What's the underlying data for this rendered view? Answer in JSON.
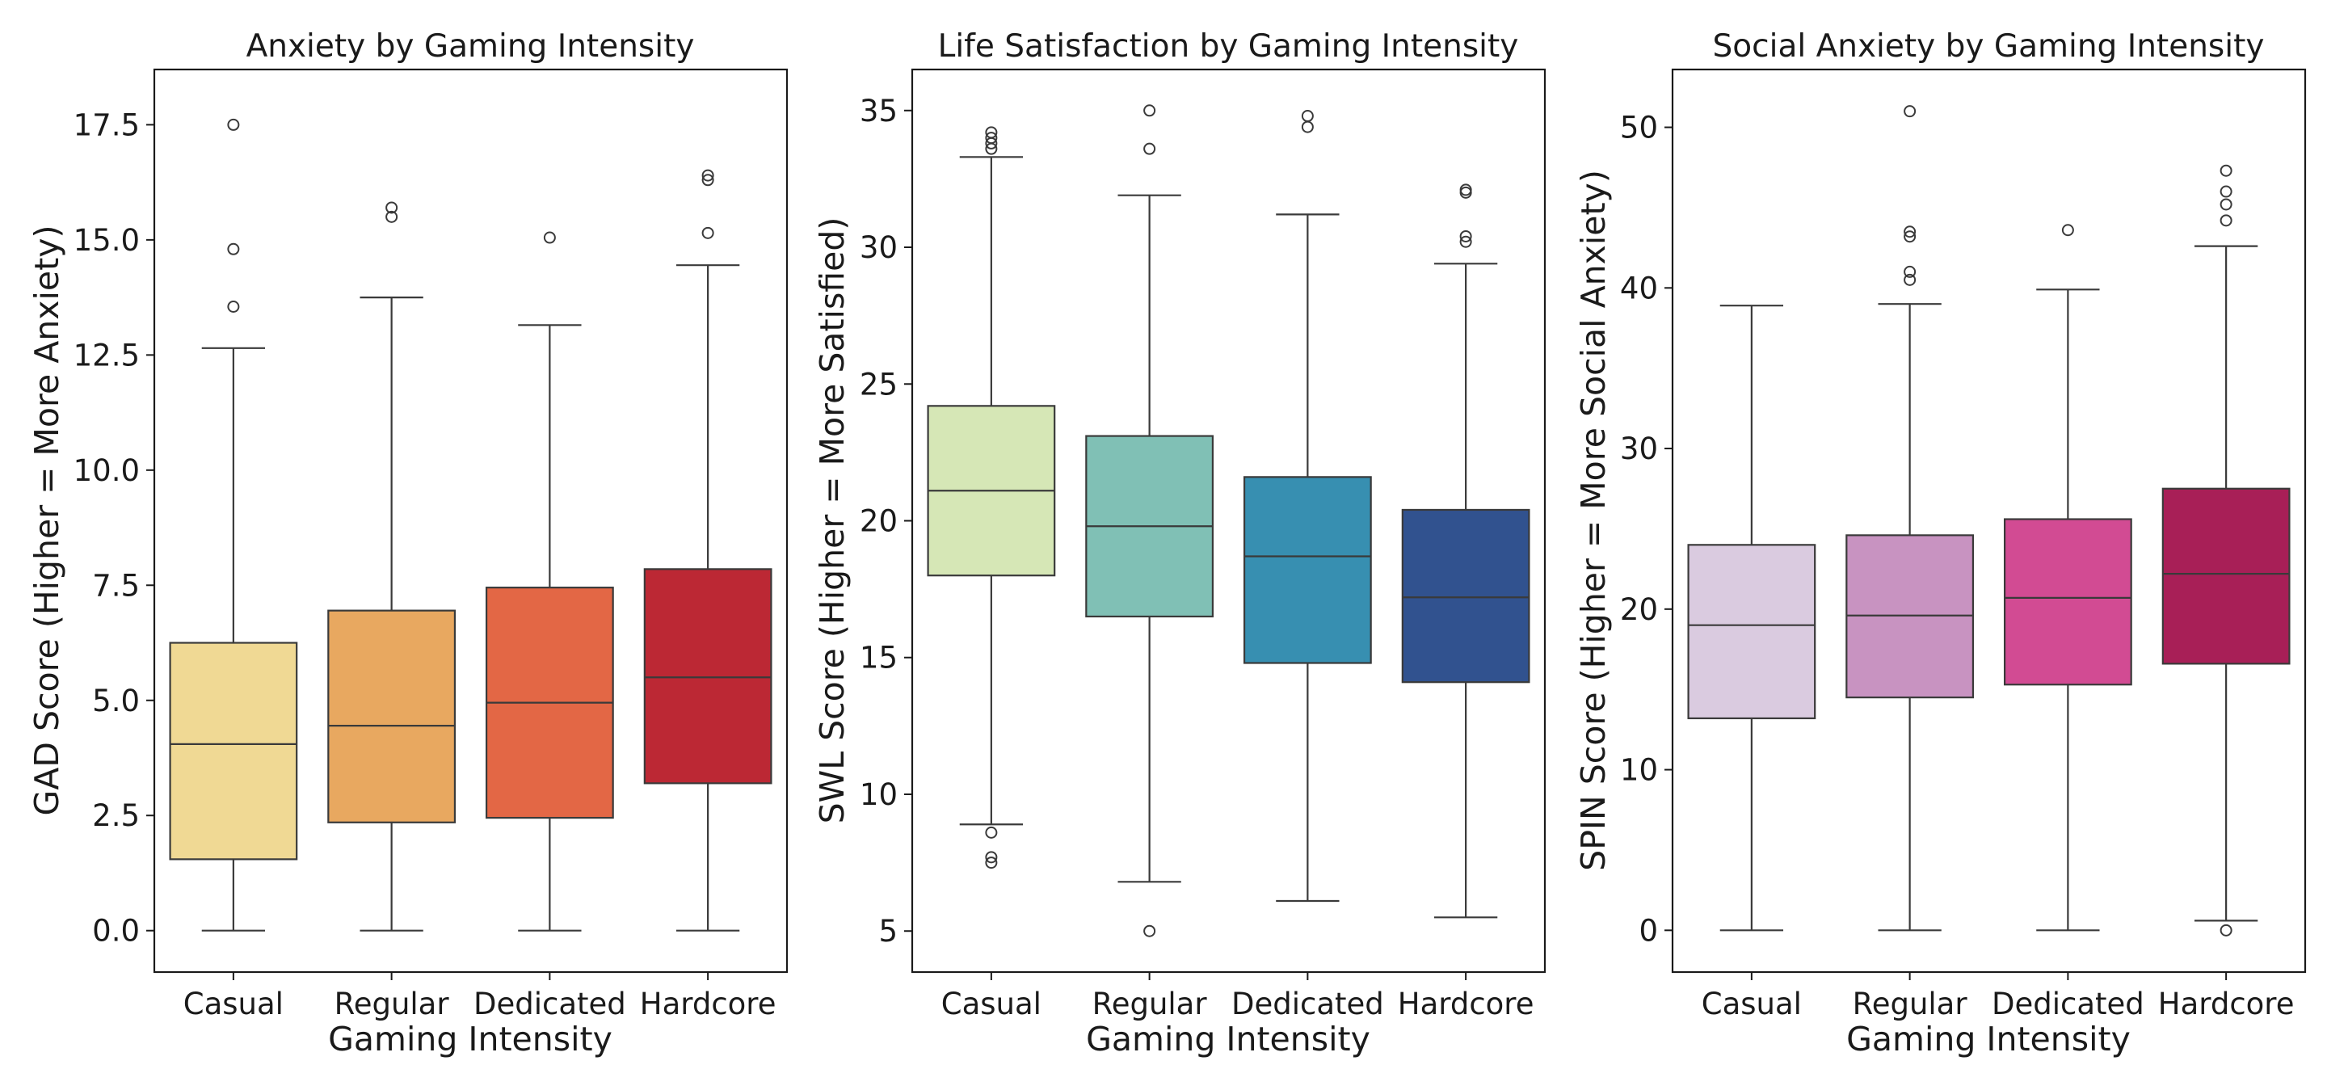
{
  "chart_data": [
    {
      "type": "box",
      "title": "Anxiety by Gaming Intensity",
      "xlabel": "Gaming Intensity",
      "ylabel": "GAD Score (Higher = More Anxiety)",
      "categories": [
        "Casual",
        "Regular",
        "Dedicated",
        "Hardcore"
      ],
      "ylim": [
        -0.9,
        18.7
      ],
      "yticks": [
        0,
        2.5,
        5,
        7.5,
        10,
        12.5,
        15,
        17.5
      ],
      "ytick_labels": [
        "0.0",
        "2.5",
        "5.0",
        "7.5",
        "10.0",
        "12.5",
        "15.0",
        "17.5"
      ],
      "boxes": [
        {
          "category": "Casual",
          "whisker_low": 0,
          "q1": 1.55,
          "median": 4.05,
          "q3": 6.25,
          "whisker_high": 12.65,
          "outliers": [
            13.55,
            14.8,
            17.5
          ],
          "color": "#f0d994"
        },
        {
          "category": "Regular",
          "whisker_low": 0,
          "q1": 2.35,
          "median": 4.45,
          "q3": 6.95,
          "whisker_high": 13.75,
          "outliers": [
            15.5,
            15.7
          ],
          "color": "#e8a860"
        },
        {
          "category": "Dedicated",
          "whisker_low": 0,
          "q1": 2.45,
          "median": 4.95,
          "q3": 7.45,
          "whisker_high": 13.15,
          "outliers": [
            15.05
          ],
          "color": "#e36745"
        },
        {
          "category": "Hardcore",
          "whisker_low": 0,
          "q1": 3.2,
          "median": 5.5,
          "q3": 7.85,
          "whisker_high": 14.45,
          "outliers": [
            15.15,
            16.3,
            16.4
          ],
          "color": "#bc2834"
        }
      ]
    },
    {
      "type": "box",
      "title": "Life Satisfaction by Gaming Intensity",
      "xlabel": "Gaming Intensity",
      "ylabel": "SWL Score (Higher = More Satisfied)",
      "categories": [
        "Casual",
        "Regular",
        "Dedicated",
        "Hardcore"
      ],
      "ylim": [
        3.5,
        36.5
      ],
      "yticks": [
        5,
        10,
        15,
        20,
        25,
        30,
        35
      ],
      "ytick_labels": [
        "5",
        "10",
        "15",
        "20",
        "25",
        "30",
        "35"
      ],
      "boxes": [
        {
          "category": "Casual",
          "whisker_low": 8.9,
          "q1": 18.0,
          "median": 21.1,
          "q3": 24.2,
          "whisker_high": 33.3,
          "outliers": [
            7.5,
            7.7,
            8.6,
            33.6,
            33.8,
            34.0,
            34.2
          ],
          "color": "#d6e7b6"
        },
        {
          "category": "Regular",
          "whisker_low": 6.8,
          "q1": 16.5,
          "median": 19.8,
          "q3": 23.1,
          "whisker_high": 31.9,
          "outliers": [
            5.0,
            33.6,
            35.0
          ],
          "color": "#80c0b5"
        },
        {
          "category": "Dedicated",
          "whisker_low": 6.1,
          "q1": 14.8,
          "median": 18.7,
          "q3": 21.6,
          "whisker_high": 31.2,
          "outliers": [
            34.4,
            34.8
          ],
          "color": "#378fb1"
        },
        {
          "category": "Hardcore",
          "whisker_low": 5.5,
          "q1": 14.1,
          "median": 17.2,
          "q3": 20.4,
          "whisker_high": 29.4,
          "outliers": [
            30.2,
            30.4,
            32.0,
            32.1
          ],
          "color": "#31528f"
        }
      ]
    },
    {
      "type": "box",
      "title": "Social Anxiety by Gaming Intensity",
      "xlabel": "Gaming Intensity",
      "ylabel": "SPIN Score (Higher = More Social Anxiety)",
      "categories": [
        "Casual",
        "Regular",
        "Dedicated",
        "Hardcore"
      ],
      "ylim": [
        -2.6,
        53.6
      ],
      "yticks": [
        0,
        10,
        20,
        30,
        40,
        50
      ],
      "ytick_labels": [
        "0",
        "10",
        "20",
        "30",
        "40",
        "50"
      ],
      "boxes": [
        {
          "category": "Casual",
          "whisker_low": 0,
          "q1": 13.2,
          "median": 19.0,
          "q3": 24.0,
          "whisker_high": 38.9,
          "outliers": [],
          "color": "#dacbe0"
        },
        {
          "category": "Regular",
          "whisker_low": 0,
          "q1": 14.5,
          "median": 19.6,
          "q3": 24.6,
          "whisker_high": 39.0,
          "outliers": [
            40.5,
            41.0,
            43.2,
            43.5,
            51.0
          ],
          "color": "#c893c1"
        },
        {
          "category": "Dedicated",
          "whisker_low": 0,
          "q1": 15.3,
          "median": 20.7,
          "q3": 25.6,
          "whisker_high": 39.9,
          "outliers": [
            43.6
          ],
          "color": "#d24b93"
        },
        {
          "category": "Hardcore",
          "whisker_low": 0.6,
          "q1": 16.6,
          "median": 22.2,
          "q3": 27.5,
          "whisker_high": 42.6,
          "outliers": [
            0.0,
            44.2,
            45.2,
            46.0,
            47.3
          ],
          "color": "#a81f57"
        }
      ]
    }
  ]
}
